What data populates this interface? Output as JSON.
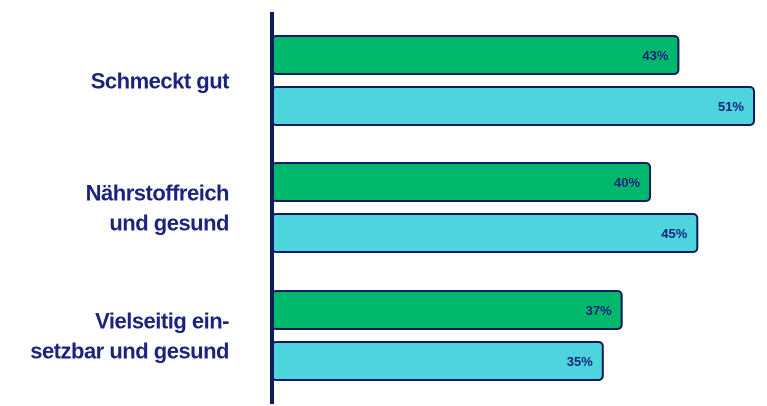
{
  "chart_data": {
    "type": "bar",
    "orientation": "horizontal",
    "categories": [
      [
        "Schmeckt gut"
      ],
      [
        "Nährstoffreich",
        "und gesund"
      ],
      [
        "Vielseitig ein-",
        "setzbar und gesund"
      ]
    ],
    "series": [
      {
        "values": [
          43,
          40,
          37
        ],
        "color": "#00b86b"
      },
      {
        "values": [
          51,
          45,
          35
        ],
        "color": "#4dd4dc"
      }
    ],
    "value_suffix": "%",
    "xlim": [
      0,
      51
    ],
    "grid": false,
    "legend": "none"
  },
  "colors": {
    "text": "#1a237e",
    "axis": "#0d1b5e",
    "bar_outline": "#0d1b5e",
    "series_1": "#00b86b",
    "series_2": "#4dd4dc"
  }
}
